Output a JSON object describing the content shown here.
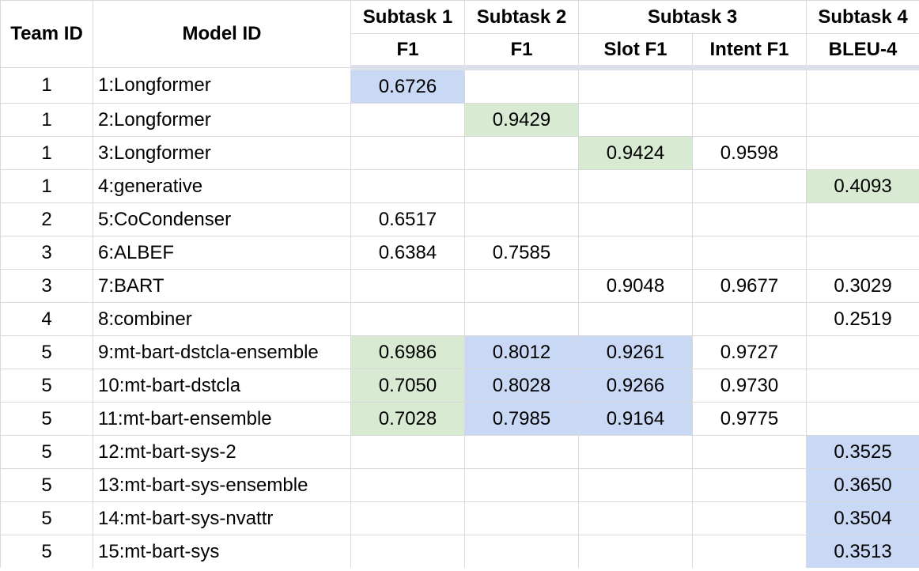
{
  "header": {
    "team_id": "Team ID",
    "model_id": "Model ID",
    "subtask1": "Subtask 1",
    "subtask2": "Subtask 2",
    "subtask3": "Subtask 3",
    "subtask4": "Subtask 4",
    "s1_metric": "F1",
    "s2_metric": "F1",
    "s3_slot": "Slot F1",
    "s3_intent": "Intent F1",
    "s4_metric": "BLEU-4"
  },
  "highlight_colors": {
    "blue": "#c9d8f4",
    "green": "#d9ead3"
  },
  "rows": [
    {
      "team": "1",
      "model": "1:Longformer",
      "s1": "0.6726",
      "s2": "",
      "slot": "",
      "intent": "",
      "bleu": "",
      "hl": {
        "s1": "blue"
      }
    },
    {
      "team": "1",
      "model": "2:Longformer",
      "s1": "",
      "s2": "0.9429",
      "slot": "",
      "intent": "",
      "bleu": "",
      "hl": {
        "s2": "green"
      }
    },
    {
      "team": "1",
      "model": "3:Longformer",
      "s1": "",
      "s2": "",
      "slot": "0.9424",
      "intent": "0.9598",
      "bleu": "",
      "hl": {
        "slot": "green"
      }
    },
    {
      "team": "1",
      "model": "4:generative",
      "s1": "",
      "s2": "",
      "slot": "",
      "intent": "",
      "bleu": "0.4093",
      "hl": {
        "bleu": "green"
      }
    },
    {
      "team": "2",
      "model": "5:CoCondenser",
      "s1": "0.6517",
      "s2": "",
      "slot": "",
      "intent": "",
      "bleu": "",
      "hl": {}
    },
    {
      "team": "3",
      "model": "6:ALBEF",
      "s1": "0.6384",
      "s2": "0.7585",
      "slot": "",
      "intent": "",
      "bleu": "",
      "hl": {}
    },
    {
      "team": "3",
      "model": "7:BART",
      "s1": "",
      "s2": "",
      "slot": "0.9048",
      "intent": "0.9677",
      "bleu": "0.3029",
      "hl": {}
    },
    {
      "team": "4",
      "model": "8:combiner",
      "s1": "",
      "s2": "",
      "slot": "",
      "intent": "",
      "bleu": "0.2519",
      "hl": {}
    },
    {
      "team": "5",
      "model": "9:mt-bart-dstcla-ensemble",
      "s1": "0.6986",
      "s2": "0.8012",
      "slot": "0.9261",
      "intent": "0.9727",
      "bleu": "",
      "hl": {
        "s1": "green",
        "s2": "blue",
        "slot": "blue"
      }
    },
    {
      "team": "5",
      "model": "10:mt-bart-dstcla",
      "s1": "0.7050",
      "s2": "0.8028",
      "slot": "0.9266",
      "intent": "0.9730",
      "bleu": "",
      "hl": {
        "s1": "green",
        "s2": "blue",
        "slot": "blue"
      }
    },
    {
      "team": "5",
      "model": "11:mt-bart-ensemble",
      "s1": "0.7028",
      "s2": "0.7985",
      "slot": "0.9164",
      "intent": "0.9775",
      "bleu": "",
      "hl": {
        "s1": "green",
        "s2": "blue",
        "slot": "blue"
      }
    },
    {
      "team": "5",
      "model": "12:mt-bart-sys-2",
      "s1": "",
      "s2": "",
      "slot": "",
      "intent": "",
      "bleu": "0.3525",
      "hl": {
        "bleu": "blue"
      }
    },
    {
      "team": "5",
      "model": "13:mt-bart-sys-ensemble",
      "s1": "",
      "s2": "",
      "slot": "",
      "intent": "",
      "bleu": "0.3650",
      "hl": {
        "bleu": "blue"
      }
    },
    {
      "team": "5",
      "model": "14:mt-bart-sys-nvattr",
      "s1": "",
      "s2": "",
      "slot": "",
      "intent": "",
      "bleu": "0.3504",
      "hl": {
        "bleu": "blue"
      }
    },
    {
      "team": "5",
      "model": "15:mt-bart-sys",
      "s1": "",
      "s2": "",
      "slot": "",
      "intent": "",
      "bleu": "0.3513",
      "hl": {
        "bleu": "blue"
      }
    }
  ]
}
